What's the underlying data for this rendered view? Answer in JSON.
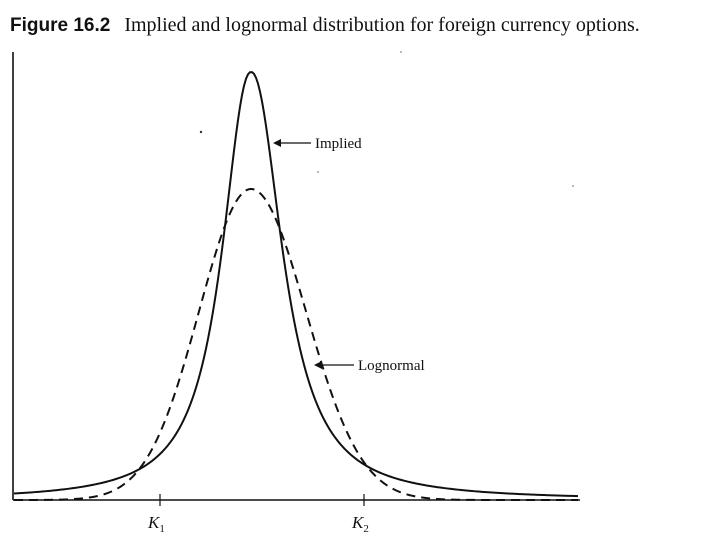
{
  "caption": {
    "figure_number": "Figure 16.2",
    "title": "Implied and lognormal distribution for foreign currency options."
  },
  "annotations": {
    "implied": "Implied",
    "lognormal": "Lognormal"
  },
  "ticks": [
    {
      "base": "K",
      "sub": "1"
    },
    {
      "base": "K",
      "sub": "2"
    }
  ],
  "style": {
    "ink": "#111111",
    "background": "#ffffff"
  },
  "chart_data": {
    "type": "line",
    "title": "",
    "xlabel": "",
    "ylabel": "",
    "series": [
      {
        "name": "Implied",
        "line_style": "solid"
      },
      {
        "name": "Lognormal",
        "line_style": "dashed"
      }
    ],
    "x_tick_labels": [
      "K1",
      "K2"
    ],
    "grid": false,
    "legend": "inline arrow annotations"
  }
}
